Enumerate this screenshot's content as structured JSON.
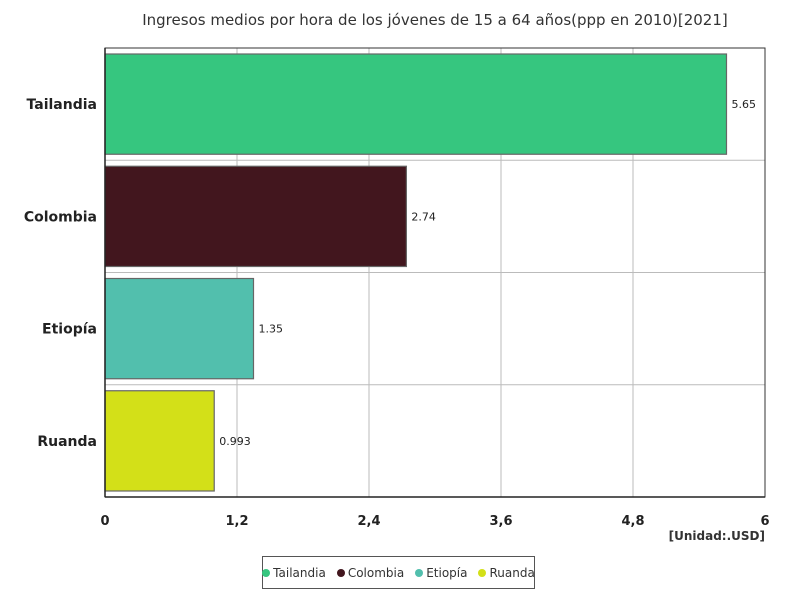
{
  "chart_data": {
    "type": "bar",
    "orientation": "horizontal",
    "title": "Ingresos medios por hora de los jóvenes de 15 a 64 años(ppp en 2010)[2021]",
    "unit_label": "[Unidad:.USD]",
    "categories": [
      "Tailandia",
      "Colombia",
      "Etiopía",
      "Ruanda"
    ],
    "values": [
      5.65,
      2.74,
      1.35,
      0.993
    ],
    "value_labels": [
      "5.65",
      "2.74",
      "1.35",
      "0.993"
    ],
    "colors": [
      "#36c67f",
      "#42161e",
      "#52bfad",
      "#d3e018"
    ],
    "xlim": [
      0,
      6
    ],
    "xticks": [
      0,
      1.2,
      2.4,
      3.6,
      4.8,
      6
    ],
    "xtick_labels": [
      "0",
      "1,2",
      "2,4",
      "3,6",
      "4,8",
      "6"
    ],
    "grid": true,
    "legend_position": "bottom-center"
  }
}
